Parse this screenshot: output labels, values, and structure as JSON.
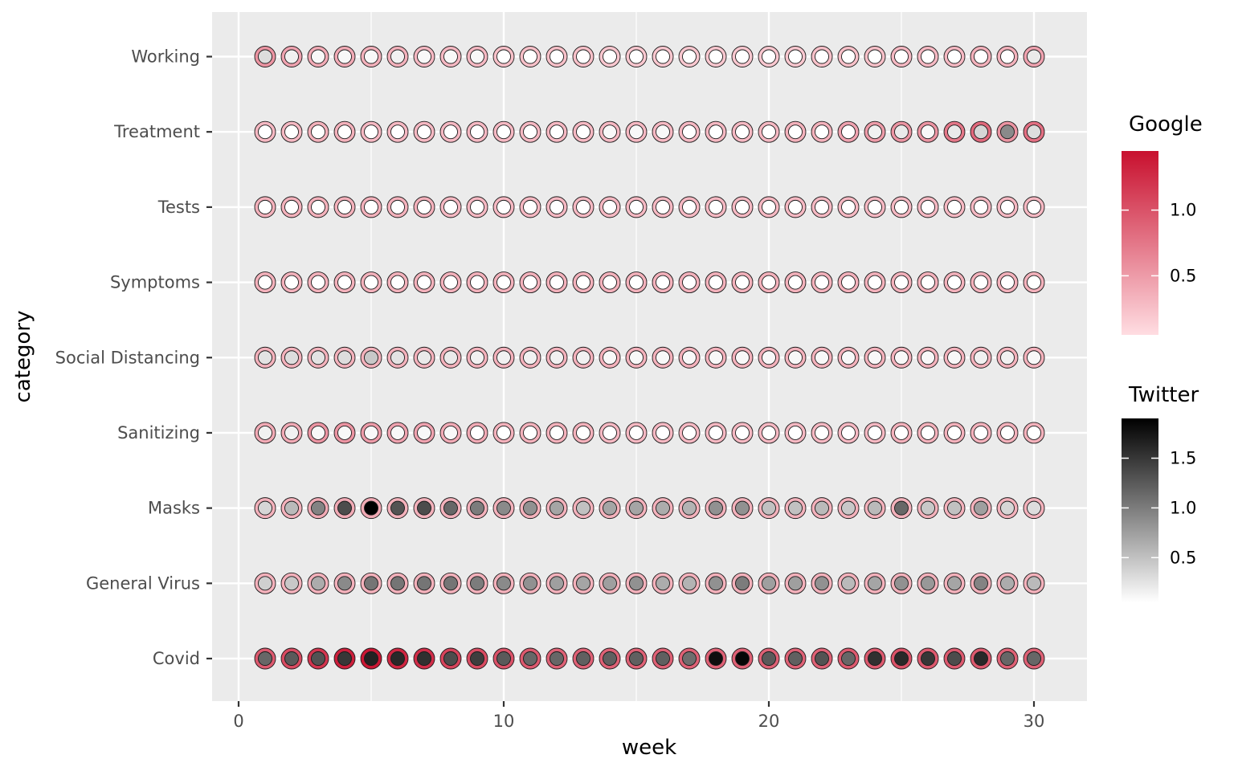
{
  "chart_data": {
    "type": "scatter",
    "xlabel": "week",
    "ylabel": "category",
    "xlim": [
      -1,
      32
    ],
    "x_ticks": [
      0,
      10,
      20,
      30
    ],
    "x_tick_labels": [
      "0",
      "10",
      "20",
      "30"
    ],
    "grid": true,
    "legend_position": "right",
    "x": [
      1,
      2,
      3,
      4,
      5,
      6,
      7,
      8,
      9,
      10,
      11,
      12,
      13,
      14,
      15,
      16,
      17,
      18,
      19,
      20,
      21,
      22,
      23,
      24,
      25,
      26,
      27,
      28,
      29,
      30
    ],
    "categories": [
      "Covid",
      "General Virus",
      "Masks",
      "Sanitizing",
      "Social Distancing",
      "Symptoms",
      "Tests",
      "Treatment",
      "Working"
    ],
    "google_legend": {
      "title": "Google",
      "range": [
        0.05,
        1.45
      ],
      "ticks": [
        0.5,
        1.0
      ],
      "tick_labels": [
        "0.5",
        "1.0"
      ],
      "color_low": "#FFDDE2",
      "color_high": "#C8102E"
    },
    "twitter_legend": {
      "title": "Twitter",
      "range": [
        0.05,
        1.9
      ],
      "ticks": [
        0.5,
        1.0,
        1.5
      ],
      "tick_labels": [
        "0.5",
        "1.0",
        "1.5"
      ],
      "color_low": "#FFFFFF",
      "color_high": "#000000"
    },
    "series": [
      {
        "category": "Working",
        "google": [
          0.55,
          0.45,
          0.4,
          0.4,
          0.35,
          0.35,
          0.3,
          0.3,
          0.3,
          0.25,
          0.25,
          0.25,
          0.25,
          0.2,
          0.2,
          0.2,
          0.2,
          0.2,
          0.2,
          0.2,
          0.2,
          0.25,
          0.25,
          0.25,
          0.3,
          0.3,
          0.3,
          0.35,
          0.35,
          0.45
        ],
        "twitter": [
          0.3,
          0.15,
          0.1,
          0.1,
          0.1,
          0.15,
          0.1,
          0.1,
          0.1,
          0.05,
          0.05,
          0.05,
          0.05,
          0.05,
          0.05,
          0.05,
          0.05,
          0.05,
          0.05,
          0.05,
          0.05,
          0.05,
          0.05,
          0.05,
          0.05,
          0.05,
          0.05,
          0.05,
          0.05,
          0.2
        ]
      },
      {
        "category": "Treatment",
        "google": [
          0.3,
          0.3,
          0.35,
          0.35,
          0.3,
          0.3,
          0.3,
          0.3,
          0.3,
          0.3,
          0.3,
          0.3,
          0.3,
          0.3,
          0.3,
          0.3,
          0.3,
          0.3,
          0.3,
          0.3,
          0.35,
          0.35,
          0.45,
          0.5,
          0.55,
          0.55,
          0.75,
          0.85,
          0.55,
          0.8
        ],
        "twitter": [
          0.05,
          0.05,
          0.05,
          0.05,
          0.05,
          0.05,
          0.05,
          0.05,
          0.05,
          0.05,
          0.05,
          0.05,
          0.05,
          0.1,
          0.1,
          0.1,
          0.05,
          0.05,
          0.05,
          0.05,
          0.05,
          0.05,
          0.05,
          0.15,
          0.2,
          0.1,
          0.2,
          0.35,
          0.9,
          0.3
        ]
      },
      {
        "category": "Tests",
        "google": [
          0.35,
          0.35,
          0.35,
          0.35,
          0.35,
          0.35,
          0.35,
          0.3,
          0.3,
          0.3,
          0.3,
          0.3,
          0.3,
          0.3,
          0.3,
          0.3,
          0.3,
          0.3,
          0.3,
          0.3,
          0.3,
          0.3,
          0.3,
          0.3,
          0.3,
          0.3,
          0.3,
          0.3,
          0.3,
          0.3
        ],
        "twitter": [
          0.05,
          0.05,
          0.05,
          0.05,
          0.05,
          0.05,
          0.05,
          0.05,
          0.05,
          0.05,
          0.05,
          0.05,
          0.05,
          0.05,
          0.05,
          0.05,
          0.05,
          0.05,
          0.05,
          0.05,
          0.05,
          0.05,
          0.05,
          0.05,
          0.05,
          0.05,
          0.05,
          0.05,
          0.05,
          0.05
        ]
      },
      {
        "category": "Symptoms",
        "google": [
          0.35,
          0.35,
          0.35,
          0.35,
          0.35,
          0.35,
          0.35,
          0.35,
          0.35,
          0.35,
          0.35,
          0.35,
          0.35,
          0.35,
          0.35,
          0.35,
          0.35,
          0.35,
          0.35,
          0.35,
          0.35,
          0.35,
          0.35,
          0.35,
          0.35,
          0.35,
          0.35,
          0.35,
          0.35,
          0.35
        ],
        "twitter": [
          0.05,
          0.05,
          0.05,
          0.05,
          0.05,
          0.05,
          0.05,
          0.05,
          0.05,
          0.05,
          0.05,
          0.05,
          0.05,
          0.05,
          0.05,
          0.05,
          0.05,
          0.05,
          0.05,
          0.05,
          0.05,
          0.05,
          0.05,
          0.05,
          0.05,
          0.05,
          0.05,
          0.05,
          0.05,
          0.05
        ]
      },
      {
        "category": "Social Distancing",
        "google": [
          0.35,
          0.35,
          0.35,
          0.35,
          0.35,
          0.35,
          0.35,
          0.35,
          0.35,
          0.35,
          0.35,
          0.35,
          0.35,
          0.35,
          0.35,
          0.35,
          0.35,
          0.35,
          0.35,
          0.35,
          0.35,
          0.35,
          0.35,
          0.35,
          0.35,
          0.35,
          0.35,
          0.35,
          0.35,
          0.35
        ],
        "twitter": [
          0.25,
          0.3,
          0.25,
          0.3,
          0.45,
          0.25,
          0.2,
          0.2,
          0.15,
          0.15,
          0.15,
          0.15,
          0.15,
          0.1,
          0.1,
          0.1,
          0.1,
          0.1,
          0.1,
          0.1,
          0.1,
          0.1,
          0.1,
          0.1,
          0.1,
          0.1,
          0.1,
          0.15,
          0.15,
          0.1
        ]
      },
      {
        "category": "Sanitizing",
        "google": [
          0.4,
          0.4,
          0.55,
          0.55,
          0.5,
          0.45,
          0.45,
          0.4,
          0.4,
          0.35,
          0.35,
          0.35,
          0.35,
          0.3,
          0.3,
          0.3,
          0.3,
          0.3,
          0.3,
          0.3,
          0.3,
          0.3,
          0.3,
          0.3,
          0.35,
          0.35,
          0.35,
          0.35,
          0.35,
          0.35
        ],
        "twitter": [
          0.15,
          0.15,
          0.1,
          0.1,
          0.1,
          0.1,
          0.1,
          0.1,
          0.05,
          0.05,
          0.05,
          0.05,
          0.05,
          0.05,
          0.05,
          0.05,
          0.05,
          0.05,
          0.05,
          0.05,
          0.05,
          0.05,
          0.05,
          0.05,
          0.05,
          0.05,
          0.05,
          0.05,
          0.05,
          0.05
        ]
      },
      {
        "category": "Masks",
        "google": [
          0.35,
          0.35,
          0.4,
          0.4,
          0.4,
          0.35,
          0.35,
          0.35,
          0.35,
          0.35,
          0.35,
          0.35,
          0.35,
          0.35,
          0.35,
          0.35,
          0.35,
          0.35,
          0.35,
          0.35,
          0.35,
          0.35,
          0.35,
          0.35,
          0.35,
          0.35,
          0.35,
          0.35,
          0.35,
          0.35
        ],
        "twitter": [
          0.35,
          0.55,
          0.95,
          1.35,
          1.9,
          1.3,
          1.35,
          1.15,
          1.0,
          0.9,
          0.85,
          0.7,
          0.5,
          0.7,
          0.7,
          0.65,
          0.6,
          0.85,
          0.85,
          0.5,
          0.5,
          0.55,
          0.45,
          0.55,
          1.15,
          0.45,
          0.5,
          0.75,
          0.35,
          0.3
        ]
      },
      {
        "category": "General Virus",
        "google": [
          0.35,
          0.35,
          0.35,
          0.35,
          0.35,
          0.35,
          0.35,
          0.35,
          0.35,
          0.35,
          0.35,
          0.35,
          0.35,
          0.35,
          0.35,
          0.35,
          0.35,
          0.35,
          0.35,
          0.35,
          0.35,
          0.35,
          0.35,
          0.35,
          0.35,
          0.35,
          0.35,
          0.35,
          0.35,
          0.35
        ],
        "twitter": [
          0.4,
          0.45,
          0.65,
          0.9,
          1.05,
          1.05,
          1.05,
          1.05,
          1.0,
          0.9,
          0.85,
          0.75,
          0.7,
          0.75,
          0.85,
          0.65,
          0.6,
          0.85,
          1.0,
          0.75,
          0.75,
          0.85,
          0.55,
          0.7,
          0.85,
          0.8,
          0.7,
          0.95,
          0.65,
          0.55
        ]
      },
      {
        "category": "Covid",
        "google": [
          0.95,
          1.05,
          1.2,
          1.35,
          1.4,
          1.3,
          1.25,
          1.1,
          1.05,
          1.0,
          0.95,
          0.9,
          0.9,
          0.9,
          0.9,
          0.9,
          0.9,
          0.9,
          0.9,
          0.9,
          0.9,
          0.9,
          0.95,
          0.95,
          1.0,
          0.95,
          0.95,
          0.95,
          0.9,
          0.9
        ],
        "twitter": [
          1.15,
          1.25,
          1.3,
          1.5,
          1.65,
          1.6,
          1.55,
          1.35,
          1.45,
          1.25,
          1.15,
          1.15,
          1.2,
          1.2,
          1.2,
          1.2,
          1.1,
          1.8,
          1.85,
          1.25,
          1.2,
          1.3,
          1.15,
          1.55,
          1.6,
          1.5,
          1.35,
          1.6,
          1.15,
          1.15
        ]
      }
    ]
  }
}
